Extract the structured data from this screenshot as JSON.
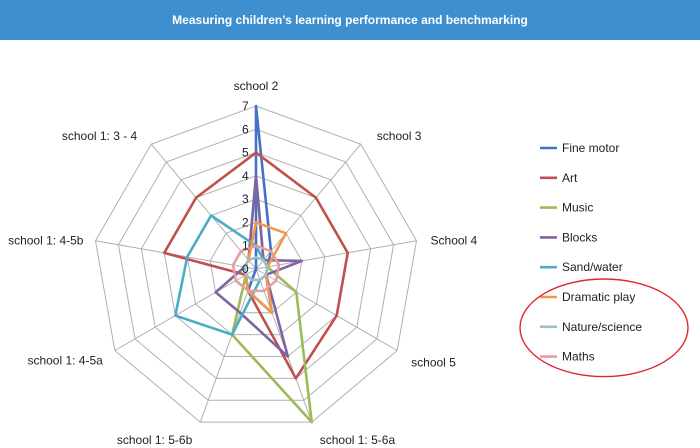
{
  "header": {
    "title": "Measuring children’s learning performance and benchmarking",
    "background_color": "#3d8fcf"
  },
  "chart_data": {
    "type": "radar",
    "categories": [
      "school 2",
      "school 3",
      "School 4",
      "school 5",
      "school 1: 5-6a",
      "school 1: 5-6b",
      "school 1: 4-5a",
      "school 1: 4-5b",
      "school 1: 3 - 4"
    ],
    "rlim": [
      0,
      7
    ],
    "ticks": [
      "0",
      "1",
      "2",
      "3",
      "4",
      "5",
      "6",
      "7"
    ],
    "grid": true,
    "legend_position": "right",
    "series": [
      {
        "name": "Fine motor",
        "color": "#4472c4",
        "values": [
          7,
          1,
          0.5,
          0.5,
          2,
          1,
          0,
          0,
          0
        ]
      },
      {
        "name": "Art",
        "color": "#c0504d",
        "values": [
          5,
          4,
          4,
          4,
          5,
          1,
          0.5,
          4,
          4
        ]
      },
      {
        "name": "Music",
        "color": "#9bbb59",
        "values": [
          4,
          0.5,
          0.5,
          2,
          7,
          3,
          0.5,
          0.5,
          0.5
        ]
      },
      {
        "name": "Blocks",
        "color": "#8064a2",
        "values": [
          4,
          0.5,
          2,
          0.5,
          4,
          2,
          2,
          0.5,
          0.5
        ]
      },
      {
        "name": "Sand/water",
        "color": "#4bacc6",
        "values": [
          1,
          0.5,
          0.5,
          0.5,
          0.5,
          3,
          4,
          3,
          3
        ]
      },
      {
        "name": "Dramatic play",
        "color": "#f79646",
        "values": [
          2,
          2,
          0.5,
          0.5,
          2,
          1,
          0.5,
          0.5,
          0.5
        ]
      },
      {
        "name": "Nature/science",
        "color": "#9cc0c8",
        "values": [
          0.5,
          0.5,
          0.5,
          0.5,
          0.5,
          0.5,
          0.5,
          0.5,
          0.5
        ]
      },
      {
        "name": "Maths",
        "color": "#e59ea0",
        "values": [
          1,
          1,
          1,
          1,
          1,
          1,
          1,
          1,
          1
        ]
      }
    ],
    "highlight": {
      "color": "#e0262a",
      "series_from": "Dramatic play"
    }
  }
}
